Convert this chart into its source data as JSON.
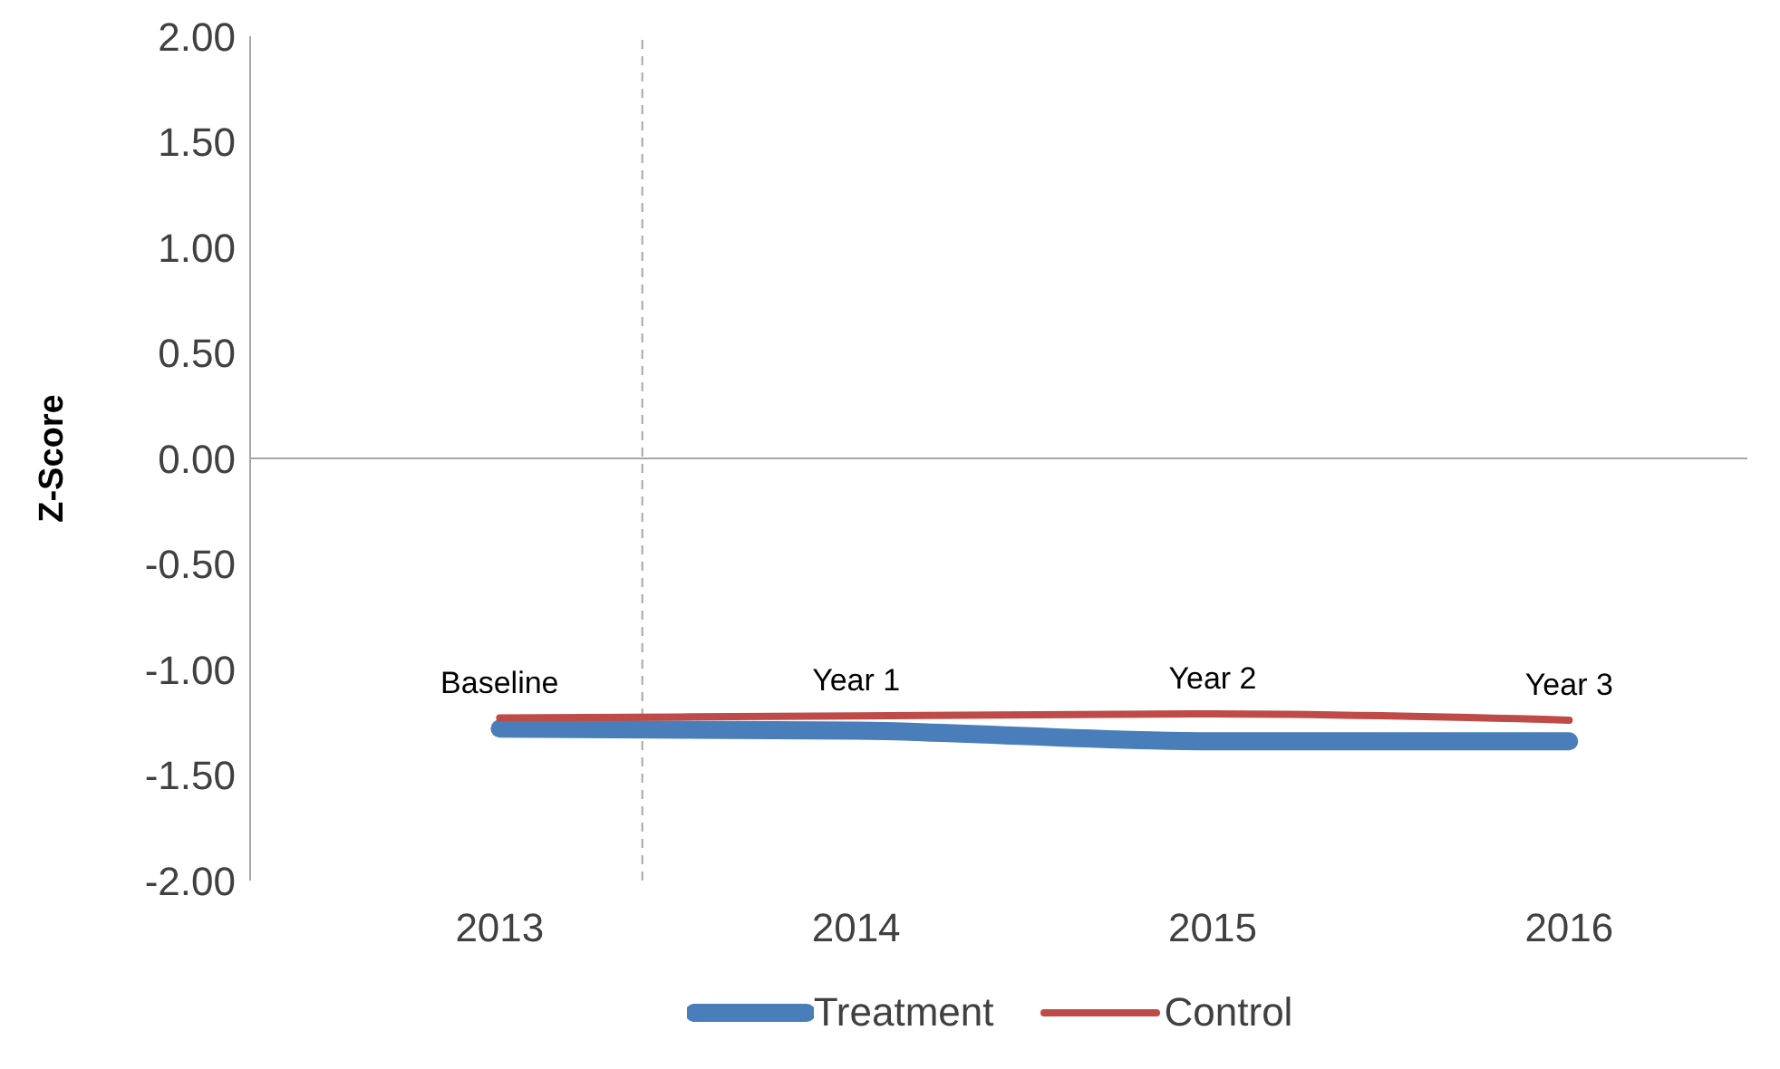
{
  "chart_data": {
    "type": "line",
    "ylabel": "Z-Score",
    "x": [
      2013,
      2014,
      2015,
      2016
    ],
    "series": [
      {
        "name": "Treatment",
        "color": "#4a7ebb",
        "values": [
          -1.28,
          -1.29,
          -1.34,
          -1.34
        ]
      },
      {
        "name": "Control",
        "color": "#be4b48",
        "values": [
          -1.23,
          -1.22,
          -1.21,
          -1.24
        ]
      }
    ],
    "xlim": [
      2012.3,
      2016.5
    ],
    "xticks": [
      2013,
      2014,
      2015,
      2016
    ],
    "ylim": [
      -2,
      2
    ],
    "yticks": [
      {
        "value": -2,
        "label": "-2.00"
      },
      {
        "value": -1.5,
        "label": "-1.50"
      },
      {
        "value": -1,
        "label": "-1.00"
      },
      {
        "value": -0.5,
        "label": "-0.50"
      },
      {
        "value": 0,
        "label": "0.00"
      },
      {
        "value": 0.5,
        "label": "0.50"
      },
      {
        "value": 1,
        "label": "1.00"
      },
      {
        "value": 1.5,
        "label": "1.50"
      },
      {
        "value": 2,
        "label": "2.00"
      }
    ],
    "ref_lines": [
      {
        "axis": "x",
        "value": 2013.4,
        "color": "#a6a6a6",
        "line_style": "dashed"
      },
      {
        "axis": "y",
        "value": 0,
        "color": "#a6a6a6",
        "line_style": "solid"
      }
    ],
    "annotations": [
      {
        "text": "Baseline",
        "x": 2013,
        "y": -1.23
      },
      {
        "text": "Year 1",
        "x": 2014,
        "y": -1.22
      },
      {
        "text": "Year 2",
        "x": 2015,
        "y": -1.21
      },
      {
        "text": "Year 3",
        "x": 2016,
        "y": -1.24
      }
    ],
    "grid": false,
    "legend": "bottom",
    "marker": "none",
    "line_style": "solid"
  }
}
